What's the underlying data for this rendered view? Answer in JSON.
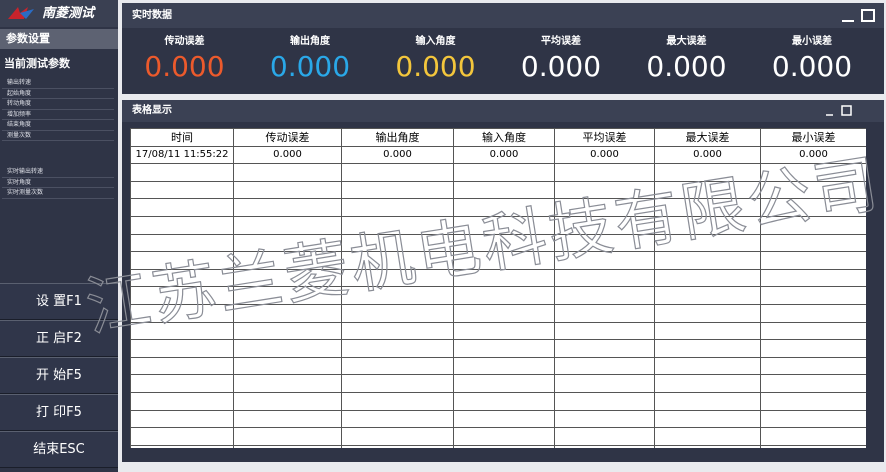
{
  "sidebar": {
    "logo": "南菱测试",
    "menu_title": "参数设置",
    "section_title": "当前测试参数",
    "params": [
      "输出转速",
      "起始角度",
      "转动角度",
      "增加频率",
      "结束角度",
      "测量次数"
    ],
    "realtime_params": [
      "实时输出转速",
      "实时角度",
      "实时测量次数"
    ],
    "buttons": [
      "设 置F1",
      "正 启F2",
      "开 始F5",
      "打 印F5",
      "结束ESC"
    ]
  },
  "realtime": {
    "title": "实时数据",
    "metrics": [
      {
        "label": "传动误差",
        "value": "0.000"
      },
      {
        "label": "输出角度",
        "value": "0.000"
      },
      {
        "label": "输入角度",
        "value": "0.000"
      },
      {
        "label": "平均误差",
        "value": "0.000"
      },
      {
        "label": "最大误差",
        "value": "0.000"
      },
      {
        "label": "最小误差",
        "value": "0.000"
      }
    ]
  },
  "table": {
    "title": "表格显示",
    "columns": [
      "时间",
      "传动误差",
      "输出角度",
      "输入角度",
      "平均误差",
      "最大误差",
      "最小误差"
    ],
    "rows": [
      [
        "17/08/11 11:55:22",
        "0.000",
        "0.000",
        "0.000",
        "0.000",
        "0.000",
        "0.000"
      ]
    ]
  },
  "watermark": "江苏兰菱机电科技有限公司"
}
